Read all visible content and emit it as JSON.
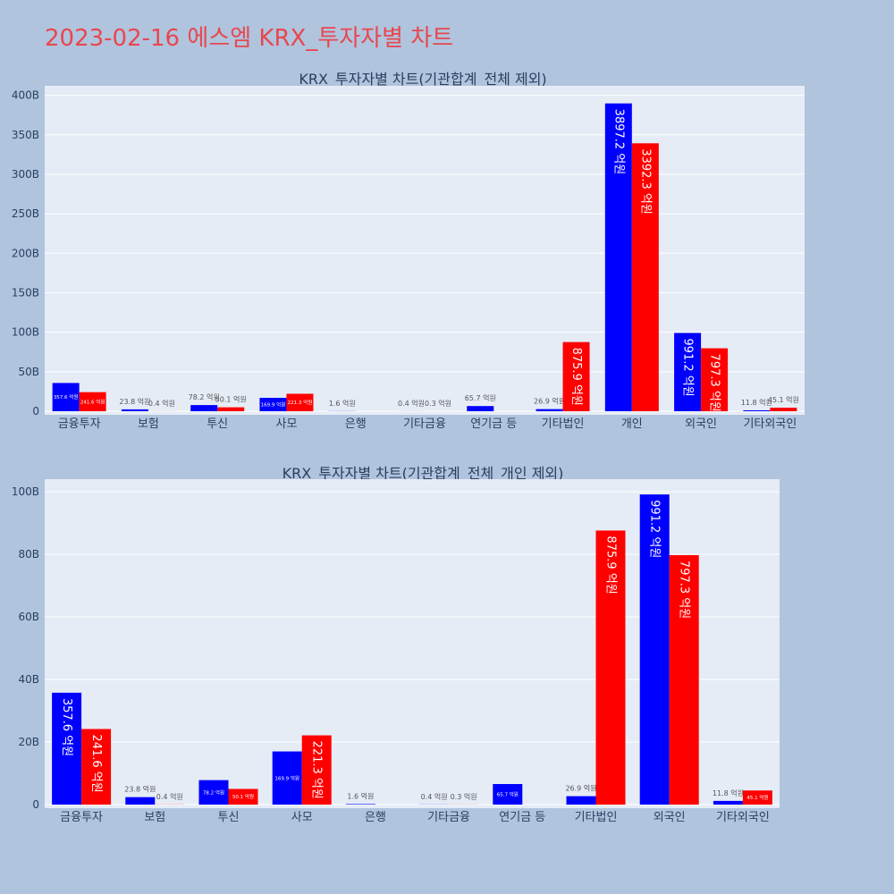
{
  "title": "2023-02-16 에스엠 KRX_투자자별 차트",
  "colors": {
    "series1": "#0000ff",
    "series2": "#ff0000",
    "plot_bg": "#e5ecf6",
    "page_bg": "#b0c4de",
    "title": "#e8474f"
  },
  "chart_data": [
    {
      "type": "bar",
      "title": "KRX_투자자별 차트(기관합계_전체 제외)",
      "categories": [
        "금융투자",
        "보험",
        "투신",
        "사모",
        "은행",
        "기타금융",
        "연기금 등",
        "기타법인",
        "개인",
        "외국인",
        "기타외국인"
      ],
      "series": [
        {
          "values": [
            35760000000,
            2380000000,
            7820000000,
            16990000000,
            160000000,
            40000000,
            6570000000,
            2690000000,
            389720000000,
            99120000000,
            1180000000
          ],
          "labels": [
            "357.6 억원",
            "23.8 억원",
            "78.2 억원",
            "169.9 억원",
            "1.6 억원",
            "0.4 억원",
            "65.7 억원",
            "26.9 억원",
            "3897.2 억원",
            "991.2 억원",
            "11.8 억원"
          ]
        },
        {
          "values": [
            24160000000,
            40000000,
            5010000000,
            22130000000,
            0,
            30000000,
            0,
            87590000000,
            339230000000,
            79730000000,
            4510000000
          ],
          "labels": [
            "241.6 억원",
            "0.4 억원",
            "50.1 억원",
            "221.3 억원",
            "",
            "0.3 억원",
            "",
            "875.9 억원",
            "3392.3 억원",
            "797.3 억원",
            "45.1 억원"
          ]
        }
      ],
      "yticks": [
        0,
        50000000000,
        100000000000,
        150000000000,
        200000000000,
        250000000000,
        300000000000,
        350000000000,
        400000000000
      ],
      "ytick_labels": [
        "0",
        "50B",
        "100B",
        "150B",
        "200B",
        "250B",
        "300B",
        "350B",
        "400B"
      ],
      "ylim": [
        0,
        412000000000
      ]
    },
    {
      "type": "bar",
      "title": "KRX_투자자별 차트(기관합계_전체_개인 제외)",
      "categories": [
        "금융투자",
        "보험",
        "투신",
        "사모",
        "은행",
        "기타금융",
        "연기금 등",
        "기타법인",
        "외국인",
        "기타외국인"
      ],
      "series": [
        {
          "values": [
            35760000000,
            2380000000,
            7820000000,
            16990000000,
            160000000,
            40000000,
            6570000000,
            2690000000,
            99120000000,
            1180000000
          ],
          "labels": [
            "357.6 억원",
            "23.8 억원",
            "78.2 억원",
            "169.9 억원",
            "1.6 억원",
            "0.4 억원",
            "65.7 억원",
            "26.9 억원",
            "991.2 억원",
            "11.8 억원"
          ]
        },
        {
          "values": [
            24160000000,
            40000000,
            5010000000,
            22130000000,
            0,
            30000000,
            0,
            87590000000,
            79730000000,
            4510000000
          ],
          "labels": [
            "241.6 억원",
            "0.4 억원",
            "50.1 억원",
            "221.3 억원",
            "",
            "0.3 억원",
            "",
            "875.9 억원",
            "797.3 억원",
            "45.1 억원"
          ]
        }
      ],
      "yticks": [
        0,
        20000000000,
        40000000000,
        60000000000,
        80000000000,
        100000000000
      ],
      "ytick_labels": [
        "0",
        "20B",
        "40B",
        "60B",
        "80B",
        "100B"
      ],
      "ylim": [
        0,
        104000000000
      ]
    }
  ]
}
